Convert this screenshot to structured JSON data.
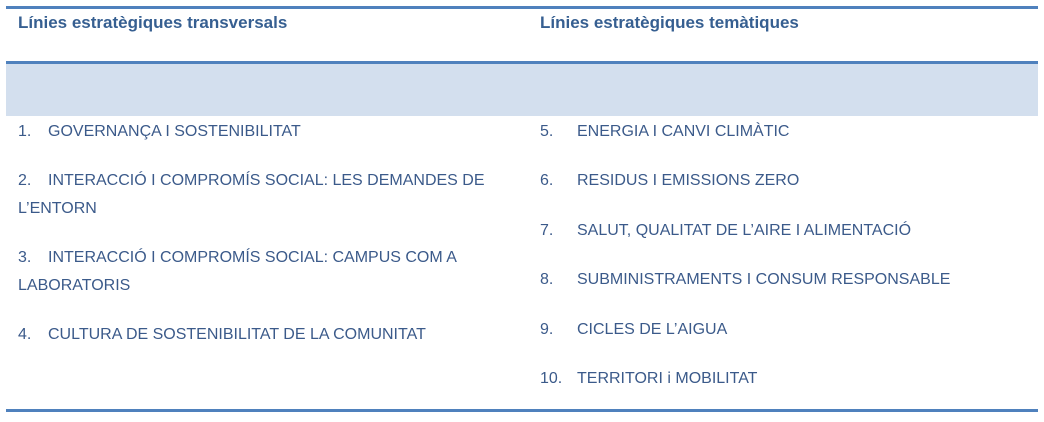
{
  "colors": {
    "rule": "#4f81bd",
    "band": "#d3dfee",
    "heading": "#365f91",
    "text": "#3b5a8a"
  },
  "headers": {
    "left": "Línies estratègiques transversals",
    "right": "Línies estratègiques temàtiques"
  },
  "left_items": [
    {
      "num": "1.",
      "label": "GOVERNANÇA I SOSTENIBILITAT"
    },
    {
      "num": "2.",
      "label": "INTERACCIÓ I COMPROMÍS SOCIAL: LES DEMANDES DE L’ENTORN"
    },
    {
      "num": "3.",
      "label": "INTERACCIÓ I COMPROMÍS SOCIAL: CAMPUS COM A LABORATORIS"
    },
    {
      "num": "4.",
      "label": "CULTURA DE SOSTENIBILITAT DE LA COMUNITAT"
    }
  ],
  "right_items": [
    {
      "num": "5.",
      "label": "ENERGIA I CANVI CLIMÀTIC"
    },
    {
      "num": "6.",
      "label": "RESIDUS I EMISSIONS ZERO"
    },
    {
      "num": "7.",
      "label": "SALUT, QUALITAT DE L’AIRE I ALIMENTACIÓ"
    },
    {
      "num": "8.",
      "label": "SUBMINISTRAMENTS I CONSUM RESPONSABLE"
    },
    {
      "num": "9.",
      "label": "CICLES DE L’AIGUA"
    },
    {
      "num": "10.",
      "label": "TERRITORI i MOBILITAT"
    }
  ]
}
